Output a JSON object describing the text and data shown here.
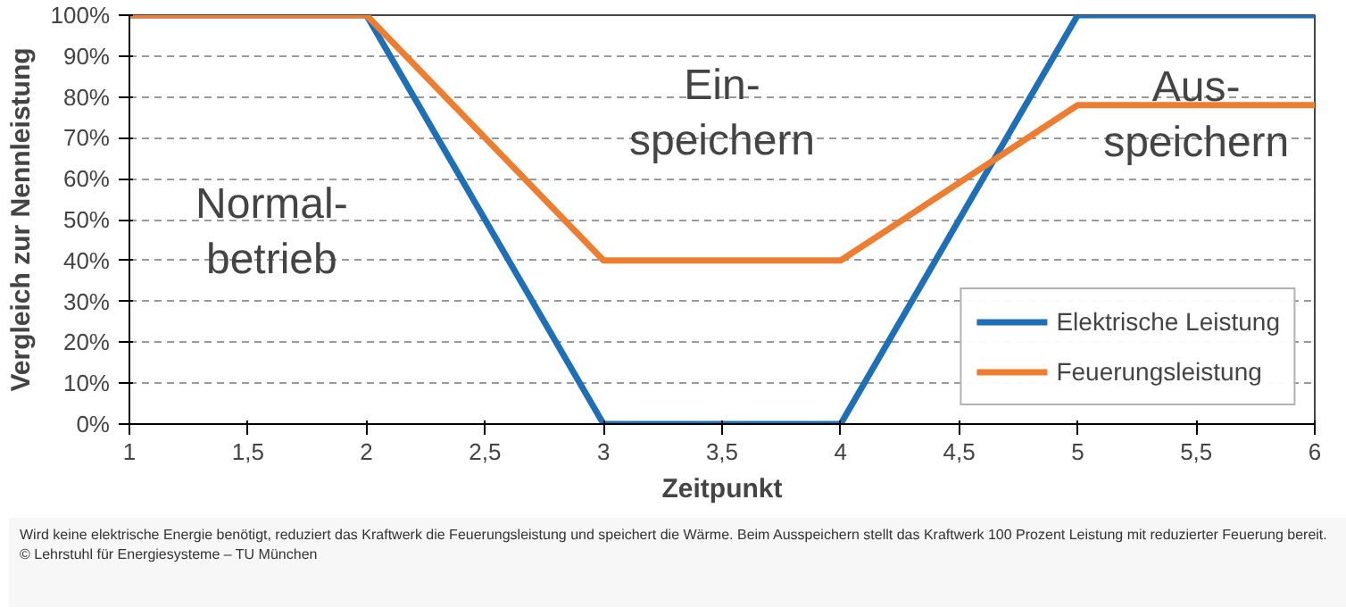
{
  "chart_data": {
    "type": "line",
    "xlabel": "Zeitpunkt",
    "ylabel": "Vergleich zur Nennleistung",
    "x": [
      1,
      2,
      3,
      4,
      5,
      6
    ],
    "series": [
      {
        "name": "Elektrische Leistung",
        "color": "#1f6fb7",
        "values": [
          100,
          100,
          0,
          0,
          100,
          100
        ]
      },
      {
        "name": "Feuerungsleistung",
        "color": "#ed7d31",
        "values": [
          100,
          100,
          40,
          40,
          78,
          78
        ]
      }
    ],
    "xlim": [
      1,
      6
    ],
    "ylim": [
      0,
      100
    ],
    "xticks": [
      1,
      {
        "value": 1.5,
        "label": "1,5"
      },
      2,
      {
        "value": 2.5,
        "label": "2,5"
      },
      3,
      {
        "value": 3.5,
        "label": "3,5"
      },
      4,
      {
        "value": 4.5,
        "label": "4,5"
      },
      5,
      {
        "value": 5.5,
        "label": "5,5"
      },
      6
    ],
    "yticks": [
      {
        "value": 0,
        "label": "0%"
      },
      {
        "value": 10,
        "label": "10%"
      },
      {
        "value": 20,
        "label": "20%"
      },
      {
        "value": 30,
        "label": "30%"
      },
      {
        "value": 40,
        "label": "40%"
      },
      {
        "value": 50,
        "label": "50%"
      },
      {
        "value": 60,
        "label": "60%"
      },
      {
        "value": 70,
        "label": "70%"
      },
      {
        "value": 80,
        "label": "80%"
      },
      {
        "value": 90,
        "label": "90%"
      },
      {
        "value": 100,
        "label": "100%"
      }
    ],
    "grid": "y",
    "legend": "bottom right",
    "marker": "none",
    "line_style": "solid",
    "annotations": [
      "Normal-\nbetrieb",
      "Ein-\nspeichern",
      "Aus-\nspeichern",
      "Wird keine elektrische Energie benötigt, reduziert das Kraftwerk die Feuerungsleistung und speichert die Wärme. Beim Ausspeichern stellt das Kraftwerk 100 Prozent Leistung mit reduzierter Feuerung bereit.",
      "© Lehrstuhl für Energiesysteme – TU München"
    ]
  }
}
